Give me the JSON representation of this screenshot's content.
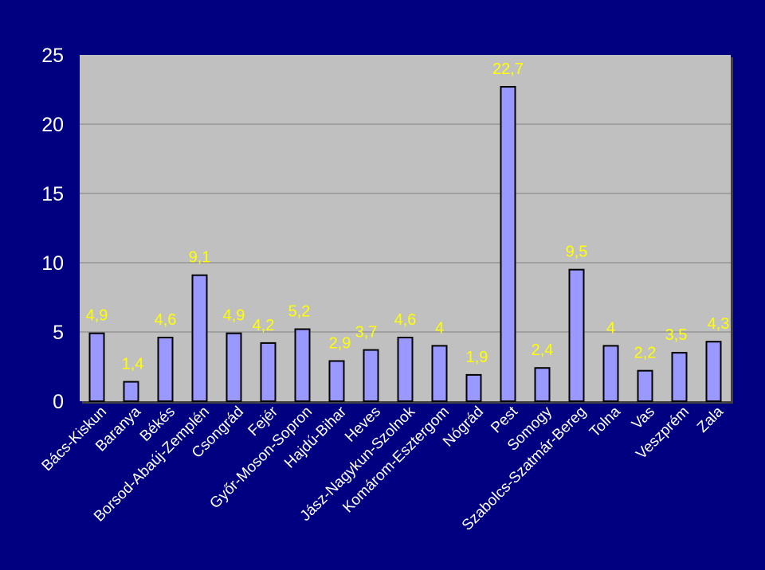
{
  "chart_data": {
    "type": "bar",
    "categories": [
      "Bács-Kiskun",
      "Baranya",
      "Békés",
      "Borsod-Abaúj-Zemplén",
      "Csongrád",
      "Fejér",
      "Győr-Moson-Sopron",
      "Hajdú-Bihar",
      "Heves",
      "Jász-Nagykun-Szolnok",
      "Komárom-Esztergom",
      "Nógrád",
      "Pest",
      "Somogy",
      "Szabolcs-Szatmár-Bereg",
      "Tolna",
      "Vas",
      "Veszprém",
      "Zala"
    ],
    "values": [
      4.9,
      1.4,
      4.6,
      9.1,
      4.9,
      4.2,
      5.2,
      2.9,
      3.7,
      4.6,
      4,
      1.9,
      22.7,
      2.4,
      9.5,
      4,
      2.2,
      3.5,
      4.3
    ],
    "value_labels": [
      "4,9",
      "1,4",
      "4,6",
      "9,1",
      "4,9",
      "4,2",
      "5,2",
      "2,9",
      "3,7",
      "4,6",
      "4",
      "1,9",
      "22,7",
      "2,4",
      "9,5",
      "4",
      "2,2",
      "3,5",
      "4,3"
    ],
    "yticks": [
      0,
      5,
      10,
      15,
      20,
      25
    ],
    "ytick_labels": [
      "0",
      "5",
      "10",
      "15",
      "20",
      "25"
    ],
    "ylim": [
      0,
      25
    ],
    "title": "",
    "xlabel": "",
    "ylabel": "",
    "grid": true,
    "legend": "none",
    "colors": {
      "background": "#000080",
      "plot_area": "#c0c0c0",
      "bar_fill": "#9999ff",
      "bar_stroke": "#000000",
      "grid": "#808080",
      "axis_text": "#ffffff",
      "data_label": "#ffff00"
    }
  }
}
